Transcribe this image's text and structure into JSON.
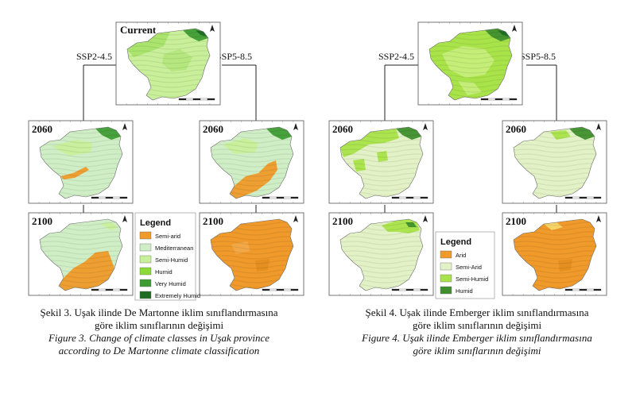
{
  "figures": [
    {
      "id": "left",
      "panels": {
        "current": {
          "label": "Current"
        },
        "a2060": {
          "label": "2060"
        },
        "b2060": {
          "label": "2060"
        },
        "a2100": {
          "label": "2100"
        },
        "b2100": {
          "label": "2100"
        }
      },
      "ssp_left": "SSP2-4.5",
      "ssp_right": "SSP5-8.5",
      "legend": {
        "title": "Legend",
        "items": [
          {
            "label": "Semi-arid",
            "color": "#ef9a2a"
          },
          {
            "label": "Mediterranean",
            "color": "#cfeec5"
          },
          {
            "label": "Semi-Humid",
            "color": "#c8ef9a"
          },
          {
            "label": "Humid",
            "color": "#8ed93a"
          },
          {
            "label": "Very Humid",
            "color": "#3f9c35"
          },
          {
            "label": "Extremely Humid",
            "color": "#1f6b23"
          }
        ]
      },
      "caption": {
        "tr_line1": "Şekil 3. Uşak ilinde De Martonne iklim sınıflandırmasına",
        "tr_line2": "göre iklim sınıflarının değişimi",
        "en_line1": "Figure 3. Change of climate classes in Uşak province",
        "en_line2": "according to De Martonne climate classification"
      }
    },
    {
      "id": "right",
      "panels": {
        "current": {
          "label": ""
        },
        "a2060": {
          "label": "2060"
        },
        "b2060": {
          "label": "2060"
        },
        "a2100": {
          "label": "2100"
        },
        "b2100": {
          "label": "2100"
        }
      },
      "ssp_left": "SSP2-4.5",
      "ssp_right": "SSP5-8.5",
      "legend": {
        "title": "Legend",
        "items": [
          {
            "label": "Arid",
            "color": "#ef9a2a"
          },
          {
            "label": "Semi-Arid",
            "color": "#e3f2c6"
          },
          {
            "label": "Semi-Humid",
            "color": "#a9e34a"
          },
          {
            "label": "Humid",
            "color": "#3f8f2e"
          }
        ]
      },
      "caption": {
        "tr_line1": "Şekil 4. Uşak ilinde Emberger iklim sınıflandırmasına",
        "tr_line2": "göre iklim sınıflarının değişimi",
        "en_line1": "Figure 4. Uşak ilinde Emberger iklim sınıflandırmasına",
        "en_line2": "göre iklim sınıflarının değişimi"
      }
    }
  ]
}
